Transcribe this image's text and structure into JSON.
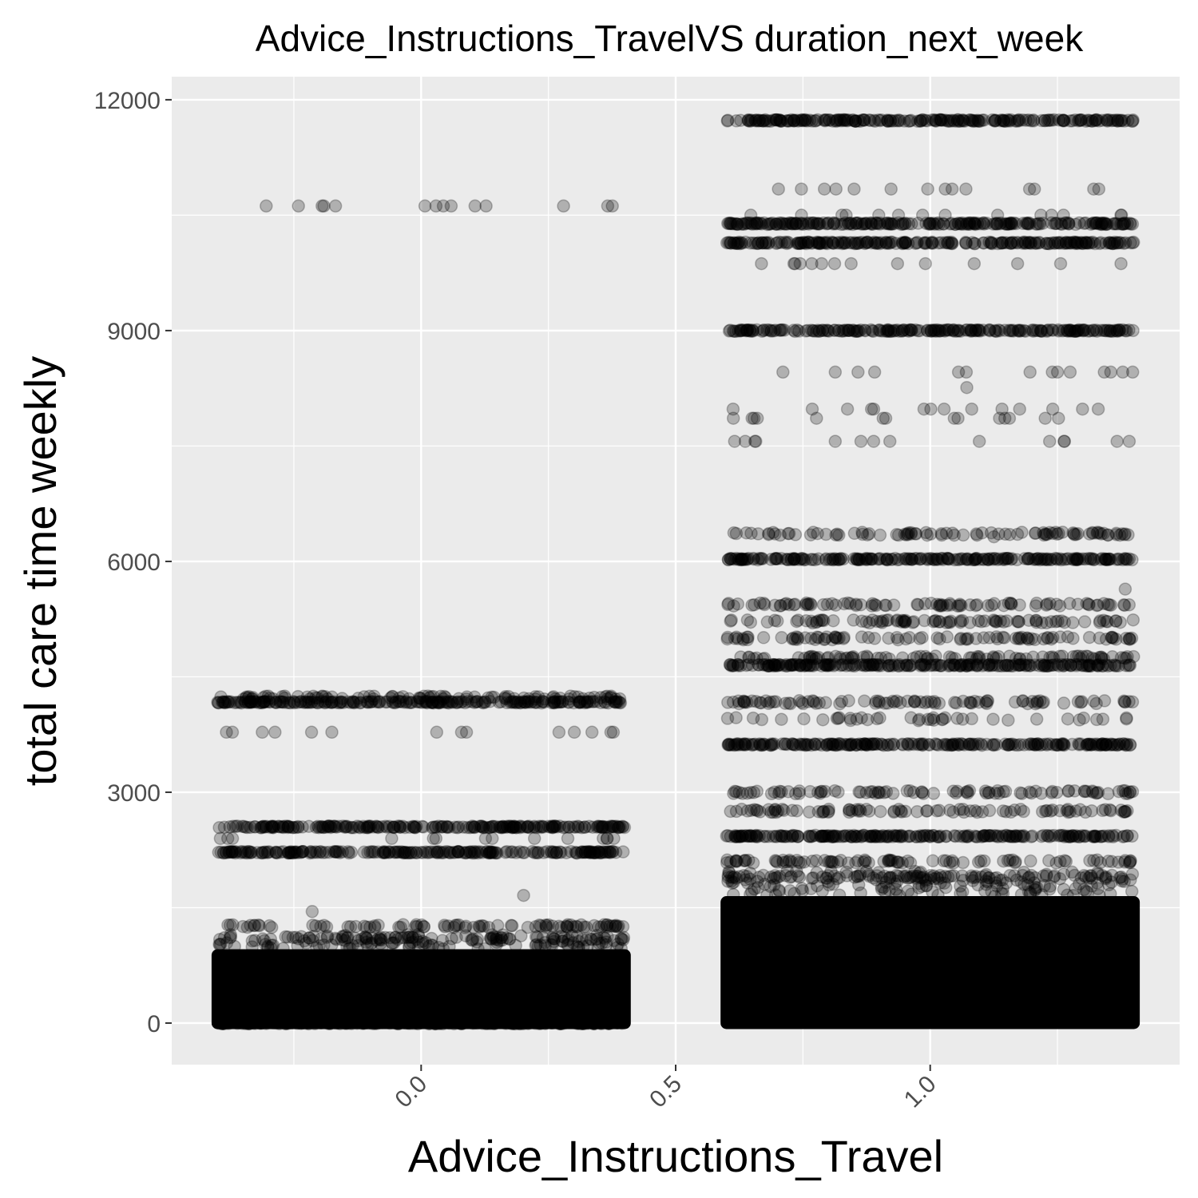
{
  "chart_data": {
    "type": "scatter",
    "title": "Advice_Instructions_TravelVS duration_next_week",
    "xlabel": "Advice_Instructions_Travel",
    "ylabel": "total care time weekly",
    "xlim": [
      -0.49,
      1.49
    ],
    "ylim": [
      -540,
      12300
    ],
    "x_ticks": [
      0.0,
      0.5,
      1.0
    ],
    "x_tick_labels": [
      "0.0",
      "0.5",
      "1.0"
    ],
    "y_ticks": [
      0,
      3000,
      6000,
      9000,
      12000
    ],
    "y_tick_labels": [
      "0",
      "3000",
      "6000",
      "9000",
      "12000"
    ],
    "grid": true,
    "panel_background": "#ebebeb",
    "grid_color": "#ffffff",
    "point_color": "#000000",
    "point_alpha": 0.25,
    "jitter_width": 0.4,
    "series": [
      {
        "x": 0,
        "dense_range": [
          0,
          960
        ],
        "bands": [
          {
            "y": 0,
            "density": "solid"
          },
          {
            "y": 2220,
            "density": "solid"
          },
          {
            "y": 2550,
            "density": "solid"
          },
          {
            "y": 4170,
            "density": "solid"
          },
          {
            "y": 4230,
            "density": "dense"
          },
          {
            "y": 1260,
            "density": "dense"
          },
          {
            "y": 1110,
            "density": "medium"
          },
          {
            "y": 3780,
            "density": "sparse"
          },
          {
            "y": 2400,
            "density": "sparse"
          },
          {
            "y": 10620,
            "density": "sparse"
          }
        ],
        "outliers": [
          1450,
          1660
        ]
      },
      {
        "x": 1,
        "dense_range": [
          0,
          1650
        ],
        "bands": [
          {
            "y": 11730,
            "density": "solid"
          },
          {
            "y": 10390,
            "density": "solid"
          },
          {
            "y": 10140,
            "density": "solid"
          },
          {
            "y": 9000,
            "density": "solid"
          },
          {
            "y": 6030,
            "density": "solid"
          },
          {
            "y": 3620,
            "density": "solid"
          },
          {
            "y": 4650,
            "density": "solid"
          },
          {
            "y": 2430,
            "density": "solid"
          },
          {
            "y": 6360,
            "density": "dense"
          },
          {
            "y": 5440,
            "density": "dense"
          },
          {
            "y": 5220,
            "density": "dense"
          },
          {
            "y": 5000,
            "density": "dense"
          },
          {
            "y": 4750,
            "density": "dense"
          },
          {
            "y": 4170,
            "density": "dense"
          },
          {
            "y": 3950,
            "density": "medium"
          },
          {
            "y": 3000,
            "density": "dense"
          },
          {
            "y": 2760,
            "density": "dense"
          },
          {
            "y": 2100,
            "density": "dense"
          },
          {
            "y": 1900,
            "density": "dense"
          },
          {
            "y": 10840,
            "density": "sparse"
          },
          {
            "y": 10500,
            "density": "sparse"
          },
          {
            "y": 9870,
            "density": "sparse"
          },
          {
            "y": 8460,
            "density": "sparse"
          },
          {
            "y": 7980,
            "density": "sparse"
          },
          {
            "y": 7860,
            "density": "sparse"
          },
          {
            "y": 7560,
            "density": "sparse"
          }
        ],
        "outliers": [
          5640,
          6320,
          8260
        ]
      }
    ]
  }
}
